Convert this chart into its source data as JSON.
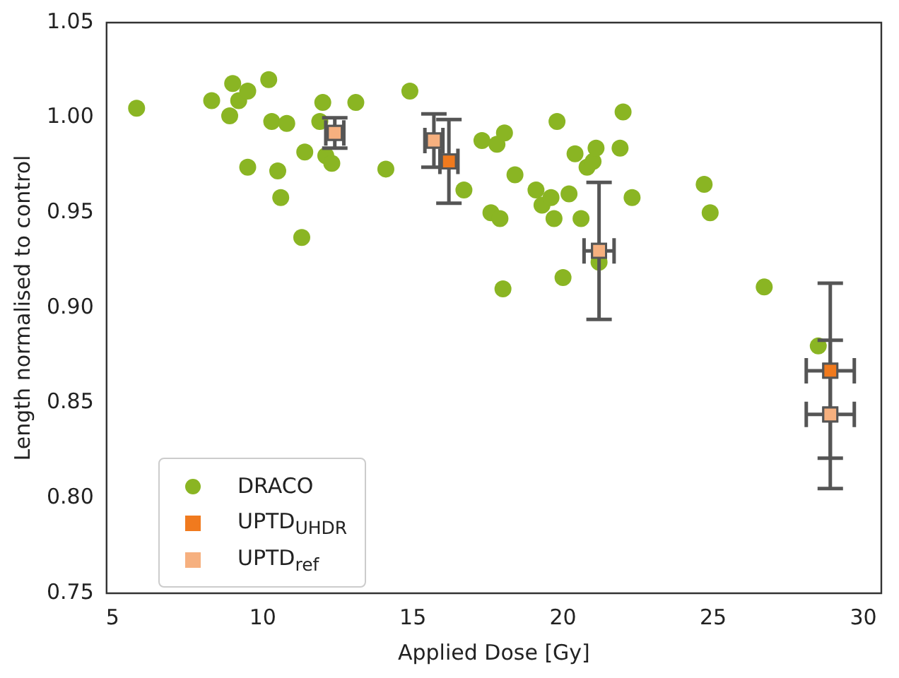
{
  "chart_data": {
    "type": "scatter",
    "xlabel": "Applied Dose [Gy]",
    "ylabel": "Length normalised to control",
    "xlim": [
      4.8,
      30.6
    ],
    "ylim": [
      0.75,
      1.05
    ],
    "xticks": [
      5,
      10,
      15,
      20,
      25,
      30
    ],
    "yticks": [
      {
        "value": 0.75,
        "label": "0.75"
      },
      {
        "value": 0.8,
        "label": "0.80"
      },
      {
        "value": 0.85,
        "label": "0.85"
      },
      {
        "value": 0.9,
        "label": "0.90"
      },
      {
        "value": 0.95,
        "label": "0.95"
      },
      {
        "value": 1.0,
        "label": "1.00"
      },
      {
        "value": 1.05,
        "label": "1.05"
      }
    ],
    "grid": false,
    "legend": "bottom left",
    "series": [
      {
        "name": "DRACO",
        "color": "#8ab523",
        "marker": "circle",
        "x": [
          5.8,
          8.3,
          8.9,
          9.0,
          9.2,
          9.5,
          9.5,
          10.2,
          10.3,
          10.8,
          10.5,
          10.6,
          11.3,
          11.4,
          11.9,
          12.0,
          12.1,
          12.3,
          13.1,
          14.1,
          14.9,
          16.7,
          17.3,
          17.6,
          17.9,
          17.8,
          18.05,
          18.0,
          18.4,
          19.1,
          19.3,
          19.6,
          19.7,
          19.8,
          20.0,
          20.2,
          20.4,
          20.6,
          20.8,
          21.0,
          21.1,
          21.2,
          21.9,
          22.0,
          22.3,
          24.7,
          24.9,
          26.7,
          28.5
        ],
        "values": [
          1.005,
          1.009,
          1.001,
          1.018,
          1.009,
          1.014,
          0.974,
          1.02,
          0.998,
          0.997,
          0.972,
          0.958,
          0.937,
          0.982,
          0.998,
          1.008,
          0.98,
          0.976,
          1.008,
          0.973,
          1.014,
          0.962,
          0.988,
          0.95,
          0.947,
          0.986,
          0.992,
          0.91,
          0.97,
          0.962,
          0.954,
          0.958,
          0.947,
          0.998,
          0.916,
          0.96,
          0.981,
          0.947,
          0.974,
          0.977,
          0.984,
          0.924,
          0.984,
          1.003,
          0.958,
          0.965,
          0.95,
          0.911,
          0.88
        ]
      },
      {
        "name": "UPTD$_{UHDR}$",
        "color": "#f07a1e",
        "marker": "square",
        "x": [
          16.2,
          28.9
        ],
        "values": [
          0.977,
          0.867
        ],
        "errors": [
          0.022,
          0.046
        ],
        "xerrors": [
          0.3,
          0.8
        ]
      },
      {
        "name": "UPTD$_{ref}$",
        "color": "#f6b07f",
        "marker": "square",
        "x": [
          12.4,
          15.7,
          21.2,
          28.9
        ],
        "values": [
          0.992,
          0.988,
          0.93,
          0.844
        ],
        "errors": [
          0.008,
          0.014,
          0.036,
          0.039
        ],
        "xerrors": [
          0.3,
          0.3,
          0.5,
          0.8
        ]
      }
    ]
  }
}
